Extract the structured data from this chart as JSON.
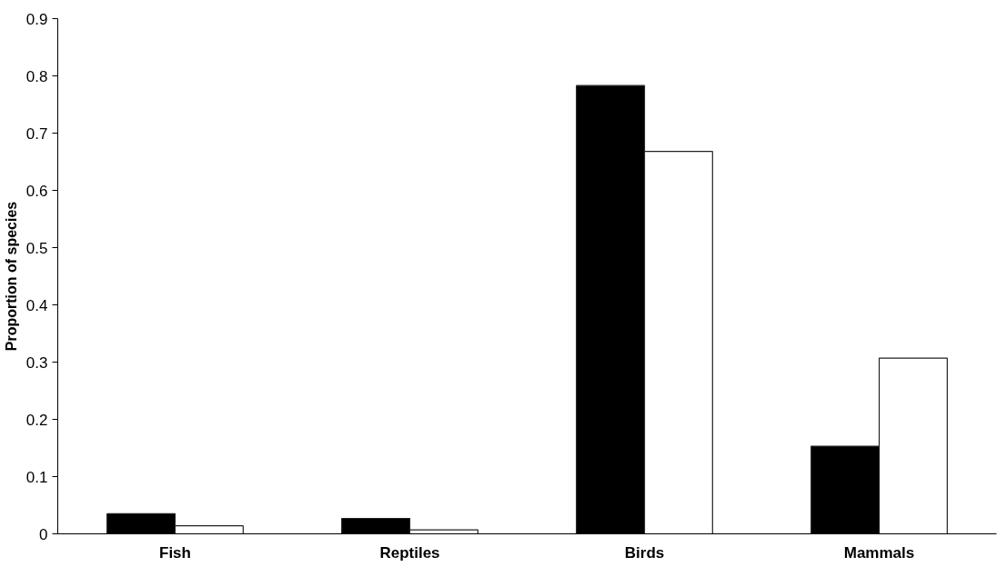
{
  "chart_data": {
    "type": "bar",
    "ylabel": "Proportion of species",
    "categories": [
      "Fish",
      "Reptiles",
      "Birds",
      "Mammals"
    ],
    "series": [
      {
        "color": "#000000",
        "values": [
          0.035,
          0.027,
          0.783,
          0.153
        ]
      },
      {
        "color": "#ffffff",
        "values": [
          0.014,
          0.007,
          0.668,
          0.307
        ]
      }
    ],
    "ylim": [
      0,
      0.9
    ],
    "yticks": [
      0,
      0.1,
      0.2,
      0.3,
      0.4,
      0.5,
      0.6,
      0.7,
      0.8,
      0.9
    ],
    "grid": false
  }
}
